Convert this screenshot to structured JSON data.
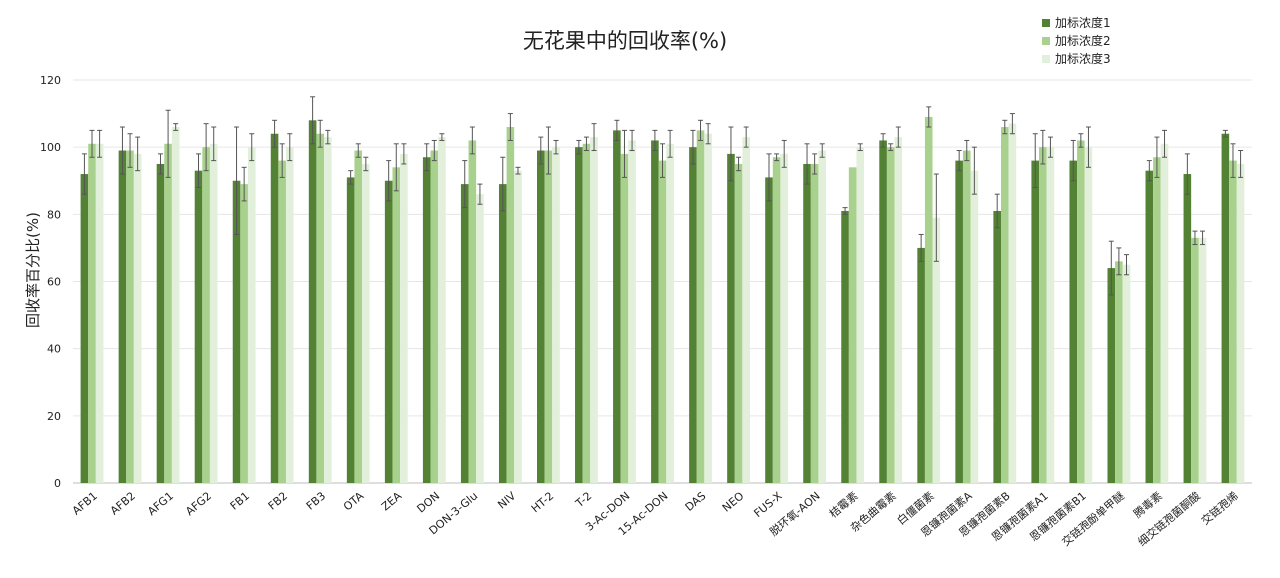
{
  "chart_data": {
    "type": "bar",
    "title": "无花果中的回收率(%)",
    "xlabel": "",
    "ylabel": "回收率百分比(%)",
    "ylim": [
      0,
      120
    ],
    "yticks": [
      0,
      20,
      40,
      60,
      80,
      100,
      120
    ],
    "grid": true,
    "legend_position": "top-right",
    "categories": [
      "AFB1",
      "AFB2",
      "AFG1",
      "AFG2",
      "FB1",
      "FB2",
      "FB3",
      "OTA",
      "ZEA",
      "DON",
      "DON-3-Glu",
      "NIV",
      "HT-2",
      "T-2",
      "3-Ac-DON",
      "15-Ac-DON",
      "DAS",
      "NEO",
      "FUS-X",
      "脱环氧-AON",
      "桔霉素",
      "杂色曲霉素",
      "白僵菌素",
      "恩镰孢菌素A",
      "恩镰孢菌素B",
      "恩镰孢菌素A1",
      "恩镰孢菌素B1",
      "交链孢酚单甲醚",
      "腾毒素",
      "细交链孢菌酮酸",
      "交链孢烯"
    ],
    "series": [
      {
        "name": "加标浓度1",
        "color": "#548235",
        "values": [
          92,
          99,
          95,
          93,
          90,
          104,
          108,
          91,
          90,
          97,
          89,
          89,
          99,
          100,
          105,
          102,
          100,
          98,
          91,
          95,
          81,
          102,
          70,
          96,
          81,
          96,
          96,
          64,
          93,
          92,
          104
        ],
        "errors": [
          6,
          7,
          3,
          5,
          16,
          4,
          7,
          2,
          6,
          4,
          7,
          8,
          4,
          2,
          3,
          3,
          5,
          8,
          7,
          6,
          1,
          2,
          4,
          3,
          5,
          8,
          6,
          8,
          3,
          6,
          1
        ]
      },
      {
        "name": "加标浓度2",
        "color": "#a9d18e",
        "values": [
          101,
          99,
          101,
          100,
          89,
          96,
          104,
          99,
          94,
          99,
          102,
          106,
          99,
          101,
          98,
          96,
          105,
          95,
          97,
          95,
          94,
          100,
          109,
          99,
          106,
          100,
          102,
          66,
          97,
          73,
          96
        ],
        "errors": [
          4,
          5,
          10,
          7,
          5,
          5,
          4,
          2,
          7,
          3,
          4,
          4,
          7,
          2,
          7,
          5,
          3,
          2,
          1,
          3,
          0,
          1,
          3,
          3,
          2,
          5,
          2,
          4,
          6,
          2,
          5
        ]
      },
      {
        "name": "加标浓度3",
        "color": "#e2efda",
        "values": [
          101,
          98,
          106,
          101,
          100,
          100,
          103,
          95,
          98,
          103,
          86,
          93,
          100,
          103,
          102,
          101,
          104,
          103,
          98,
          99,
          100,
          103,
          79,
          93,
          107,
          100,
          100,
          65,
          101,
          73,
          95
        ],
        "errors": [
          4,
          5,
          1,
          5,
          4,
          4,
          2,
          2,
          3,
          1,
          3,
          1,
          2,
          4,
          3,
          4,
          3,
          3,
          4,
          2,
          1,
          3,
          13,
          7,
          3,
          3,
          6,
          3,
          4,
          2,
          4
        ]
      }
    ]
  }
}
